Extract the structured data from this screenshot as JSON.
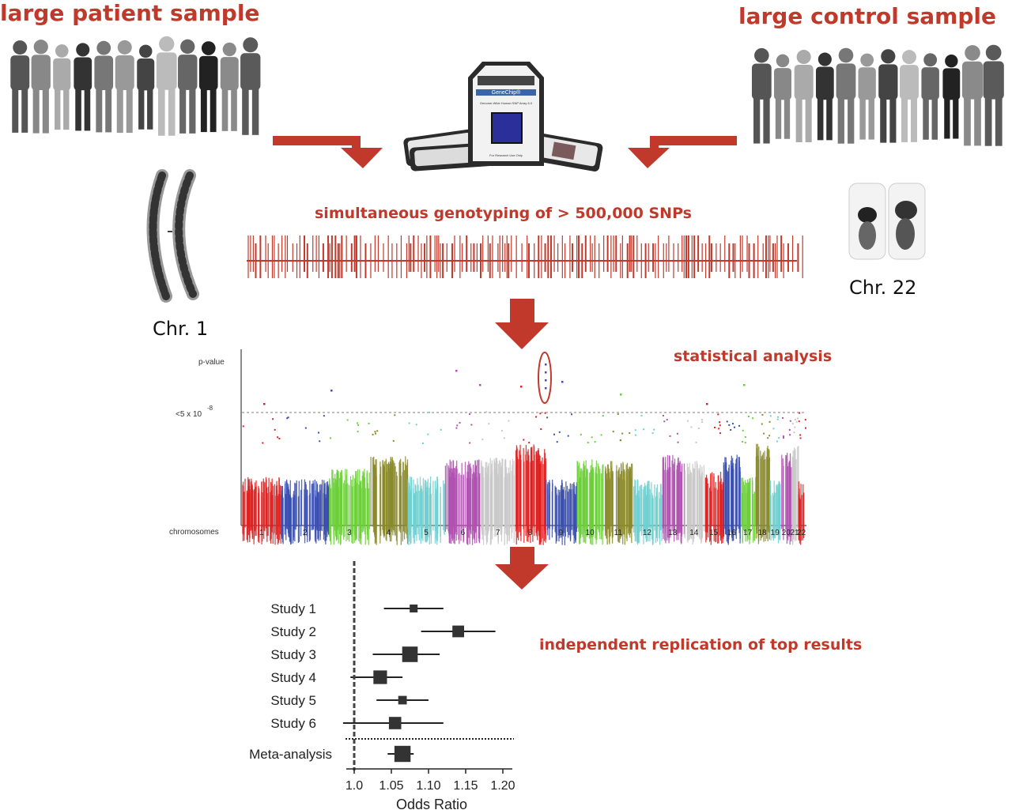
{
  "titles": {
    "patient": "large patient sample",
    "control": "large control sample",
    "genotyping": "simultaneous genotyping of > 500,000 SNPs",
    "statistical": "statistical analysis",
    "replication": "independent replication of top results"
  },
  "chromosome_images": {
    "chr1": "Chr. 1",
    "chr22": "Chr. 22"
  },
  "genechip": {
    "brand": "GeneChip®",
    "label": "Genome-Wide Human SNP Array 6.0",
    "foot": "For Research Use Only"
  },
  "colors": {
    "accent_red": "#c0392b",
    "chip_blue": "#2a2f9a"
  },
  "manhattan": {
    "y_label": "p-value",
    "threshold_label": "<5 x 10",
    "threshold_exp": "-8",
    "x_label": "chromosomes",
    "chromosomes": [
      "1",
      "2",
      "3",
      "4",
      "5",
      "6",
      "7",
      "8",
      "9",
      "10",
      "11",
      "12",
      "13",
      "14",
      "15",
      "16",
      "17",
      "18",
      "19",
      "20",
      "21",
      "22"
    ],
    "chromosome_colors": [
      "#e02020",
      "#3a4fb0",
      "#6ccf3a",
      "#8a8a2a",
      "#6fd0d0",
      "#b050b0",
      "#c8c8c8",
      "#e02020",
      "#3a4fb0",
      "#6ccf3a",
      "#8a8a2a",
      "#6fd0d0",
      "#b050b0",
      "#c8c8c8",
      "#e02020",
      "#3a4fb0",
      "#6ccf3a",
      "#8a8a2a",
      "#6fd0d0",
      "#b050b0",
      "#c8c8c8",
      "#e02020"
    ]
  },
  "chart_data": {
    "type": "forest",
    "xlabel": "Odds Ratio",
    "x_ticks": [
      "1.0",
      "1.05",
      "1.10",
      "1.15",
      "1.20"
    ],
    "xlim": [
      0.995,
      1.205
    ],
    "reference_line": 1.0,
    "studies": [
      {
        "label": "Study 1",
        "or": 1.08,
        "ci": [
          1.04,
          1.12
        ],
        "weight": 1
      },
      {
        "label": "Study 2",
        "or": 1.14,
        "ci": [
          1.09,
          1.19
        ],
        "weight": 1.6
      },
      {
        "label": "Study 3",
        "or": 1.075,
        "ci": [
          1.025,
          1.115
        ],
        "weight": 2.2
      },
      {
        "label": "Study 4",
        "or": 1.035,
        "ci": [
          0.995,
          1.065
        ],
        "weight": 1.9
      },
      {
        "label": "Study 5",
        "or": 1.065,
        "ci": [
          1.03,
          1.1
        ],
        "weight": 1.1
      },
      {
        "label": "Study 6",
        "or": 1.055,
        "ci": [
          0.985,
          1.12
        ],
        "weight": 1.7
      }
    ],
    "meta": {
      "label": "Meta-analysis",
      "or": 1.065,
      "ci": [
        1.045,
        1.08
      ],
      "weight": 2.3
    }
  }
}
